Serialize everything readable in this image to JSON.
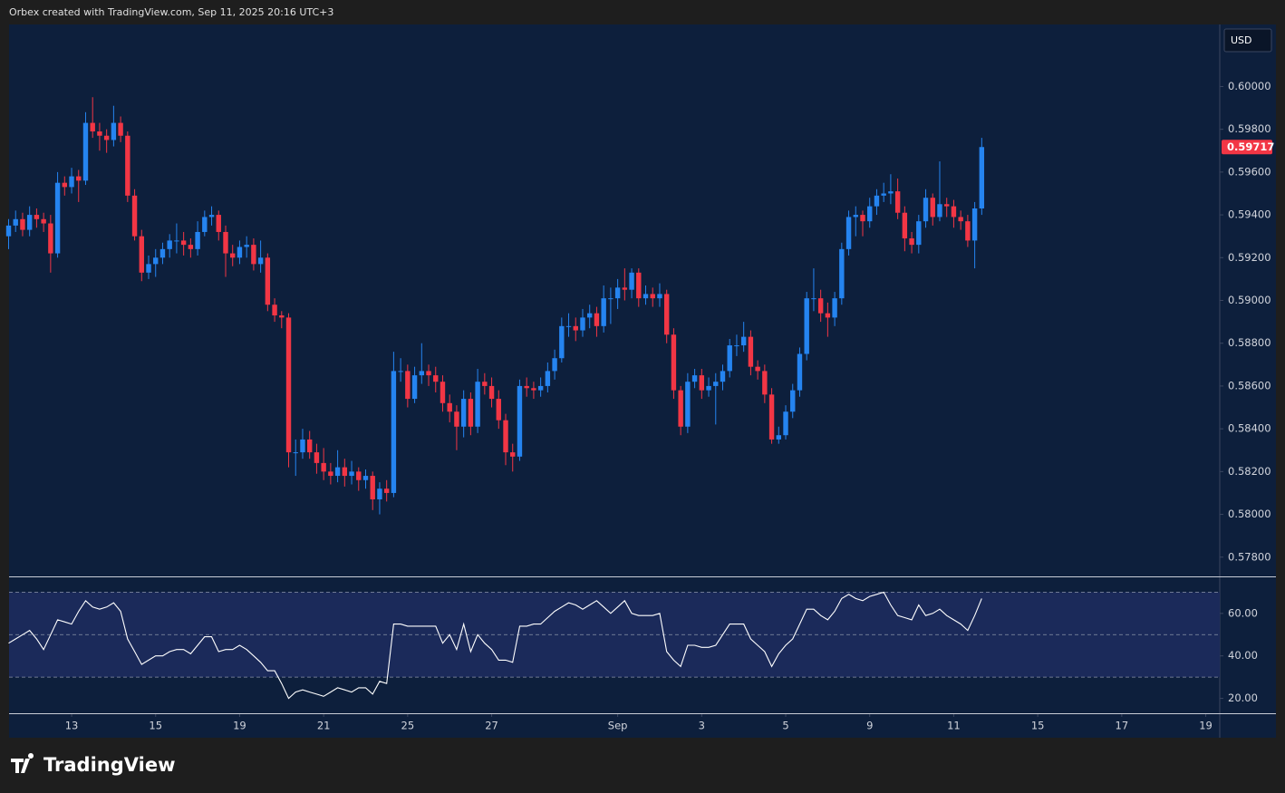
{
  "header": "Orbex created with TradingView.com, Sep 11, 2025 20:16 UTC+3",
  "logo": "TradingView",
  "currency": "USD",
  "chart_data": [
    {
      "type": "candlestick",
      "up_color": "#2584f0",
      "down_color": "#f23645",
      "xlim": [
        0,
        173
      ],
      "ylim": [
        0.5771,
        0.6029
      ],
      "yticks": [
        {
          "value": 0.578,
          "label": "0.57800"
        },
        {
          "value": 0.58,
          "label": "0.58000"
        },
        {
          "value": 0.582,
          "label": "0.58200"
        },
        {
          "value": 0.584,
          "label": "0.58400"
        },
        {
          "value": 0.586,
          "label": "0.58600"
        },
        {
          "value": 0.588,
          "label": "0.58800"
        },
        {
          "value": 0.59,
          "label": "0.59000"
        },
        {
          "value": 0.592,
          "label": "0.59200"
        },
        {
          "value": 0.594,
          "label": "0.59400"
        },
        {
          "value": 0.596,
          "label": "0.59600"
        },
        {
          "value": 0.598,
          "label": "0.59800"
        },
        {
          "value": 0.6,
          "label": "0.60000"
        }
      ],
      "open": [
        0.593,
        0.5935,
        0.5938,
        0.5933,
        0.594,
        0.5938,
        0.5936,
        0.5922,
        0.5955,
        0.5953,
        0.5958,
        0.5956,
        0.5983,
        0.5979,
        0.5977,
        0.5975,
        0.5983,
        0.5977,
        0.5949,
        0.593,
        0.5913,
        0.5917,
        0.592,
        0.5924,
        0.5928,
        0.5928,
        0.5926,
        0.5924,
        0.5932,
        0.5939,
        0.594,
        0.5932,
        0.5922,
        0.592,
        0.5925,
        0.5926,
        0.5917,
        0.592,
        0.5898,
        0.5893,
        0.5892,
        0.5829,
        0.5829,
        0.5835,
        0.5829,
        0.5824,
        0.582,
        0.5818,
        0.5822,
        0.5818,
        0.582,
        0.5816,
        0.5818,
        0.5807,
        0.5812,
        0.581,
        0.5867,
        0.5867,
        0.5854,
        0.5865,
        0.5867,
        0.5865,
        0.5862,
        0.5852,
        0.5848,
        0.5841,
        0.5854,
        0.5841,
        0.5862,
        0.586,
        0.5854,
        0.5844,
        0.5829,
        0.5827,
        0.586,
        0.5859,
        0.5858,
        0.586,
        0.5867,
        0.5873,
        0.5888,
        0.5888,
        0.5886,
        0.5892,
        0.5894,
        0.5888,
        0.5901,
        0.5901,
        0.5906,
        0.5905,
        0.5913,
        0.5901,
        0.5903,
        0.5901,
        0.5903,
        0.5884,
        0.5858,
        0.5841,
        0.5862,
        0.5865,
        0.5858,
        0.586,
        0.5862,
        0.5867,
        0.5879,
        0.5879,
        0.5883,
        0.5869,
        0.5867,
        0.5856,
        0.5835,
        0.5837,
        0.5848,
        0.5858,
        0.5875,
        0.5901,
        0.5901,
        0.5894,
        0.5892,
        0.5901,
        0.5924,
        0.5939,
        0.594,
        0.5937,
        0.5944,
        0.5949,
        0.595,
        0.5951,
        0.5941,
        0.5929,
        0.5926,
        0.5937,
        0.5948,
        0.5939,
        0.5945,
        0.5944,
        0.5939,
        0.5937,
        0.5928,
        0.5943
      ],
      "high": [
        0.5938,
        0.5942,
        0.5941,
        0.5944,
        0.5943,
        0.5941,
        0.594,
        0.596,
        0.5958,
        0.5962,
        0.5961,
        0.5988,
        0.5995,
        0.5983,
        0.598,
        0.5991,
        0.5986,
        0.5979,
        0.5952,
        0.5933,
        0.5921,
        0.5924,
        0.5927,
        0.5931,
        0.5936,
        0.5932,
        0.5929,
        0.5937,
        0.5942,
        0.5944,
        0.5942,
        0.5935,
        0.5926,
        0.5928,
        0.593,
        0.5929,
        0.5928,
        0.5922,
        0.5901,
        0.5895,
        0.5894,
        0.5835,
        0.584,
        0.5839,
        0.5833,
        0.5831,
        0.5824,
        0.583,
        0.5826,
        0.5825,
        0.5822,
        0.5821,
        0.582,
        0.5815,
        0.5816,
        0.5876,
        0.5873,
        0.587,
        0.5869,
        0.588,
        0.587,
        0.5869,
        0.5865,
        0.5856,
        0.5851,
        0.5858,
        0.5857,
        0.5868,
        0.5866,
        0.5864,
        0.5858,
        0.5847,
        0.5833,
        0.5863,
        0.5864,
        0.5862,
        0.5864,
        0.5871,
        0.5877,
        0.5892,
        0.5894,
        0.5892,
        0.5896,
        0.5898,
        0.5897,
        0.5907,
        0.5906,
        0.591,
        0.5915,
        0.5915,
        0.5915,
        0.5907,
        0.5906,
        0.5908,
        0.5905,
        0.5887,
        0.586,
        0.5866,
        0.5868,
        0.5868,
        0.5864,
        0.5866,
        0.587,
        0.5882,
        0.5884,
        0.589,
        0.5886,
        0.5872,
        0.587,
        0.5859,
        0.5841,
        0.5851,
        0.5861,
        0.5878,
        0.5904,
        0.5915,
        0.5905,
        0.5899,
        0.5904,
        0.5927,
        0.5942,
        0.5944,
        0.5942,
        0.5948,
        0.5952,
        0.5955,
        0.5959,
        0.5957,
        0.5944,
        0.5932,
        0.594,
        0.5952,
        0.595,
        0.5965,
        0.5948,
        0.5947,
        0.5942,
        0.594,
        0.5946,
        0.5976
      ],
      "low": [
        0.5924,
        0.5932,
        0.593,
        0.593,
        0.5934,
        0.5932,
        0.5913,
        0.592,
        0.5949,
        0.595,
        0.5946,
        0.5954,
        0.5976,
        0.597,
        0.5969,
        0.5972,
        0.5974,
        0.5946,
        0.5928,
        0.5909,
        0.591,
        0.5911,
        0.5917,
        0.592,
        0.5922,
        0.5921,
        0.592,
        0.5921,
        0.593,
        0.5935,
        0.5928,
        0.5911,
        0.5916,
        0.5917,
        0.592,
        0.5914,
        0.5913,
        0.5895,
        0.589,
        0.5887,
        0.5822,
        0.5818,
        0.5826,
        0.5826,
        0.5819,
        0.5816,
        0.5814,
        0.5815,
        0.5813,
        0.5814,
        0.5811,
        0.5812,
        0.5802,
        0.58,
        0.5806,
        0.5808,
        0.5862,
        0.585,
        0.5852,
        0.5861,
        0.586,
        0.5857,
        0.5848,
        0.5843,
        0.583,
        0.5836,
        0.5837,
        0.5838,
        0.5856,
        0.585,
        0.584,
        0.5823,
        0.582,
        0.5825,
        0.5855,
        0.5854,
        0.5855,
        0.5857,
        0.5863,
        0.5871,
        0.5883,
        0.5881,
        0.5883,
        0.5887,
        0.5883,
        0.5885,
        0.5889,
        0.5896,
        0.59,
        0.5901,
        0.5897,
        0.5898,
        0.5897,
        0.5897,
        0.588,
        0.5854,
        0.5837,
        0.5838,
        0.5859,
        0.5854,
        0.5855,
        0.5842,
        0.5858,
        0.5864,
        0.5874,
        0.5876,
        0.5865,
        0.5863,
        0.5852,
        0.5833,
        0.5833,
        0.5835,
        0.5845,
        0.5855,
        0.5872,
        0.5895,
        0.589,
        0.5883,
        0.5888,
        0.5898,
        0.5921,
        0.593,
        0.593,
        0.5934,
        0.594,
        0.5946,
        0.5945,
        0.5938,
        0.5923,
        0.5922,
        0.5922,
        0.5934,
        0.5935,
        0.5937,
        0.5939,
        0.5934,
        0.5933,
        0.5925,
        0.5915,
        0.594
      ],
      "close": [
        0.5935,
        0.5938,
        0.5933,
        0.594,
        0.5938,
        0.5936,
        0.5922,
        0.5955,
        0.5953,
        0.5958,
        0.5956,
        0.5983,
        0.5979,
        0.5977,
        0.5975,
        0.5983,
        0.5977,
        0.5949,
        0.593,
        0.5913,
        0.5917,
        0.592,
        0.5924,
        0.5928,
        0.5928,
        0.5926,
        0.5924,
        0.5932,
        0.5939,
        0.594,
        0.5932,
        0.5922,
        0.592,
        0.5925,
        0.5926,
        0.5917,
        0.592,
        0.5898,
        0.5893,
        0.5892,
        0.5829,
        0.5829,
        0.5835,
        0.5829,
        0.5824,
        0.582,
        0.5818,
        0.5822,
        0.5818,
        0.582,
        0.5816,
        0.5818,
        0.5807,
        0.5812,
        0.581,
        0.5867,
        0.5867,
        0.5854,
        0.5865,
        0.5867,
        0.5865,
        0.5862,
        0.5852,
        0.5848,
        0.5841,
        0.5854,
        0.5841,
        0.5862,
        0.586,
        0.5854,
        0.5844,
        0.5829,
        0.5827,
        0.586,
        0.5859,
        0.5858,
        0.586,
        0.5867,
        0.5873,
        0.5888,
        0.5888,
        0.5886,
        0.5892,
        0.5894,
        0.5888,
        0.5901,
        0.5901,
        0.5906,
        0.5905,
        0.5913,
        0.5901,
        0.5903,
        0.5901,
        0.5903,
        0.5884,
        0.5858,
        0.5841,
        0.5862,
        0.5865,
        0.5858,
        0.586,
        0.5862,
        0.5867,
        0.5879,
        0.5879,
        0.5883,
        0.5869,
        0.5867,
        0.5856,
        0.5835,
        0.5837,
        0.5848,
        0.5858,
        0.5875,
        0.5901,
        0.5901,
        0.5894,
        0.5892,
        0.5901,
        0.5924,
        0.5939,
        0.594,
        0.5937,
        0.5944,
        0.5949,
        0.595,
        0.5951,
        0.5941,
        0.5929,
        0.5926,
        0.5937,
        0.5948,
        0.5939,
        0.5945,
        0.5944,
        0.5939,
        0.5937,
        0.5928,
        0.5943,
        0.59717
      ]
    },
    {
      "type": "line",
      "color": "#ffffff",
      "band_color": "#1b2a5a",
      "xlim": [
        0,
        173
      ],
      "ylim": [
        13,
        77
      ],
      "band": [
        30,
        70
      ],
      "levels": [
        30,
        50,
        70
      ],
      "yticks": [
        {
          "value": 20,
          "label": "20.00"
        },
        {
          "value": 40,
          "label": "40.00"
        },
        {
          "value": 60,
          "label": "60.00"
        }
      ],
      "xticks": [
        {
          "value": 9,
          "label": "13"
        },
        {
          "value": 21,
          "label": "15"
        },
        {
          "value": 33,
          "label": "19"
        },
        {
          "value": 45,
          "label": "21"
        },
        {
          "value": 57,
          "label": "25"
        },
        {
          "value": 69,
          "label": "27"
        },
        {
          "value": 87,
          "label": "Sep"
        },
        {
          "value": 99,
          "label": "3"
        },
        {
          "value": 111,
          "label": "5"
        },
        {
          "value": 123,
          "label": "9"
        },
        {
          "value": 135,
          "label": "11"
        },
        {
          "value": 147,
          "label": "15"
        },
        {
          "value": 159,
          "label": "17"
        },
        {
          "value": 171,
          "label": "19"
        }
      ],
      "values": [
        46,
        48,
        50,
        52,
        48,
        43,
        50,
        57,
        56,
        55,
        61,
        66,
        63,
        62,
        63,
        65,
        61,
        48,
        42,
        36,
        38,
        40,
        40,
        42,
        43,
        43,
        41,
        45,
        49,
        49,
        42,
        43,
        43,
        45,
        43,
        40,
        37,
        33,
        33,
        27,
        20,
        23,
        24,
        23,
        22,
        21,
        23,
        25,
        24,
        23,
        25,
        25,
        22,
        28,
        27,
        55,
        55,
        54,
        54,
        54,
        54,
        54,
        46,
        50,
        43,
        55,
        42,
        50,
        46,
        43,
        38,
        38,
        37,
        54,
        54,
        55,
        55,
        58,
        61,
        63,
        65,
        64,
        62,
        64,
        66,
        63,
        60,
        63,
        66,
        60,
        59,
        59,
        59,
        60,
        42,
        38,
        35,
        45,
        45,
        44,
        44,
        45,
        50,
        55,
        55,
        55,
        48,
        45,
        42,
        35,
        41,
        45,
        48,
        55,
        62,
        62,
        59,
        57,
        61,
        67,
        69,
        67,
        66,
        68,
        69,
        70,
        64,
        59,
        58,
        57,
        64,
        59,
        60,
        62,
        59,
        57,
        55,
        52,
        59,
        67
      ]
    }
  ]
}
